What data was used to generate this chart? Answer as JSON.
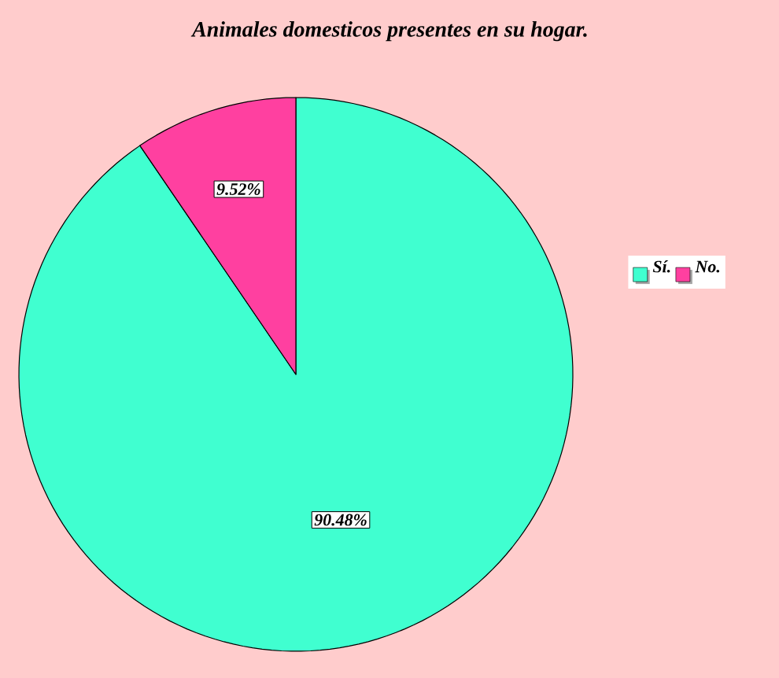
{
  "chart_data": {
    "type": "pie",
    "title": "Animales domesticos presentes en su hogar.",
    "categories": [
      "Sí.",
      "No."
    ],
    "values": [
      90.48,
      9.52
    ],
    "value_labels": [
      "90.48%",
      "9.52%"
    ],
    "colors": [
      "#40ffd0",
      "#ff40a0"
    ],
    "legend": "right"
  }
}
